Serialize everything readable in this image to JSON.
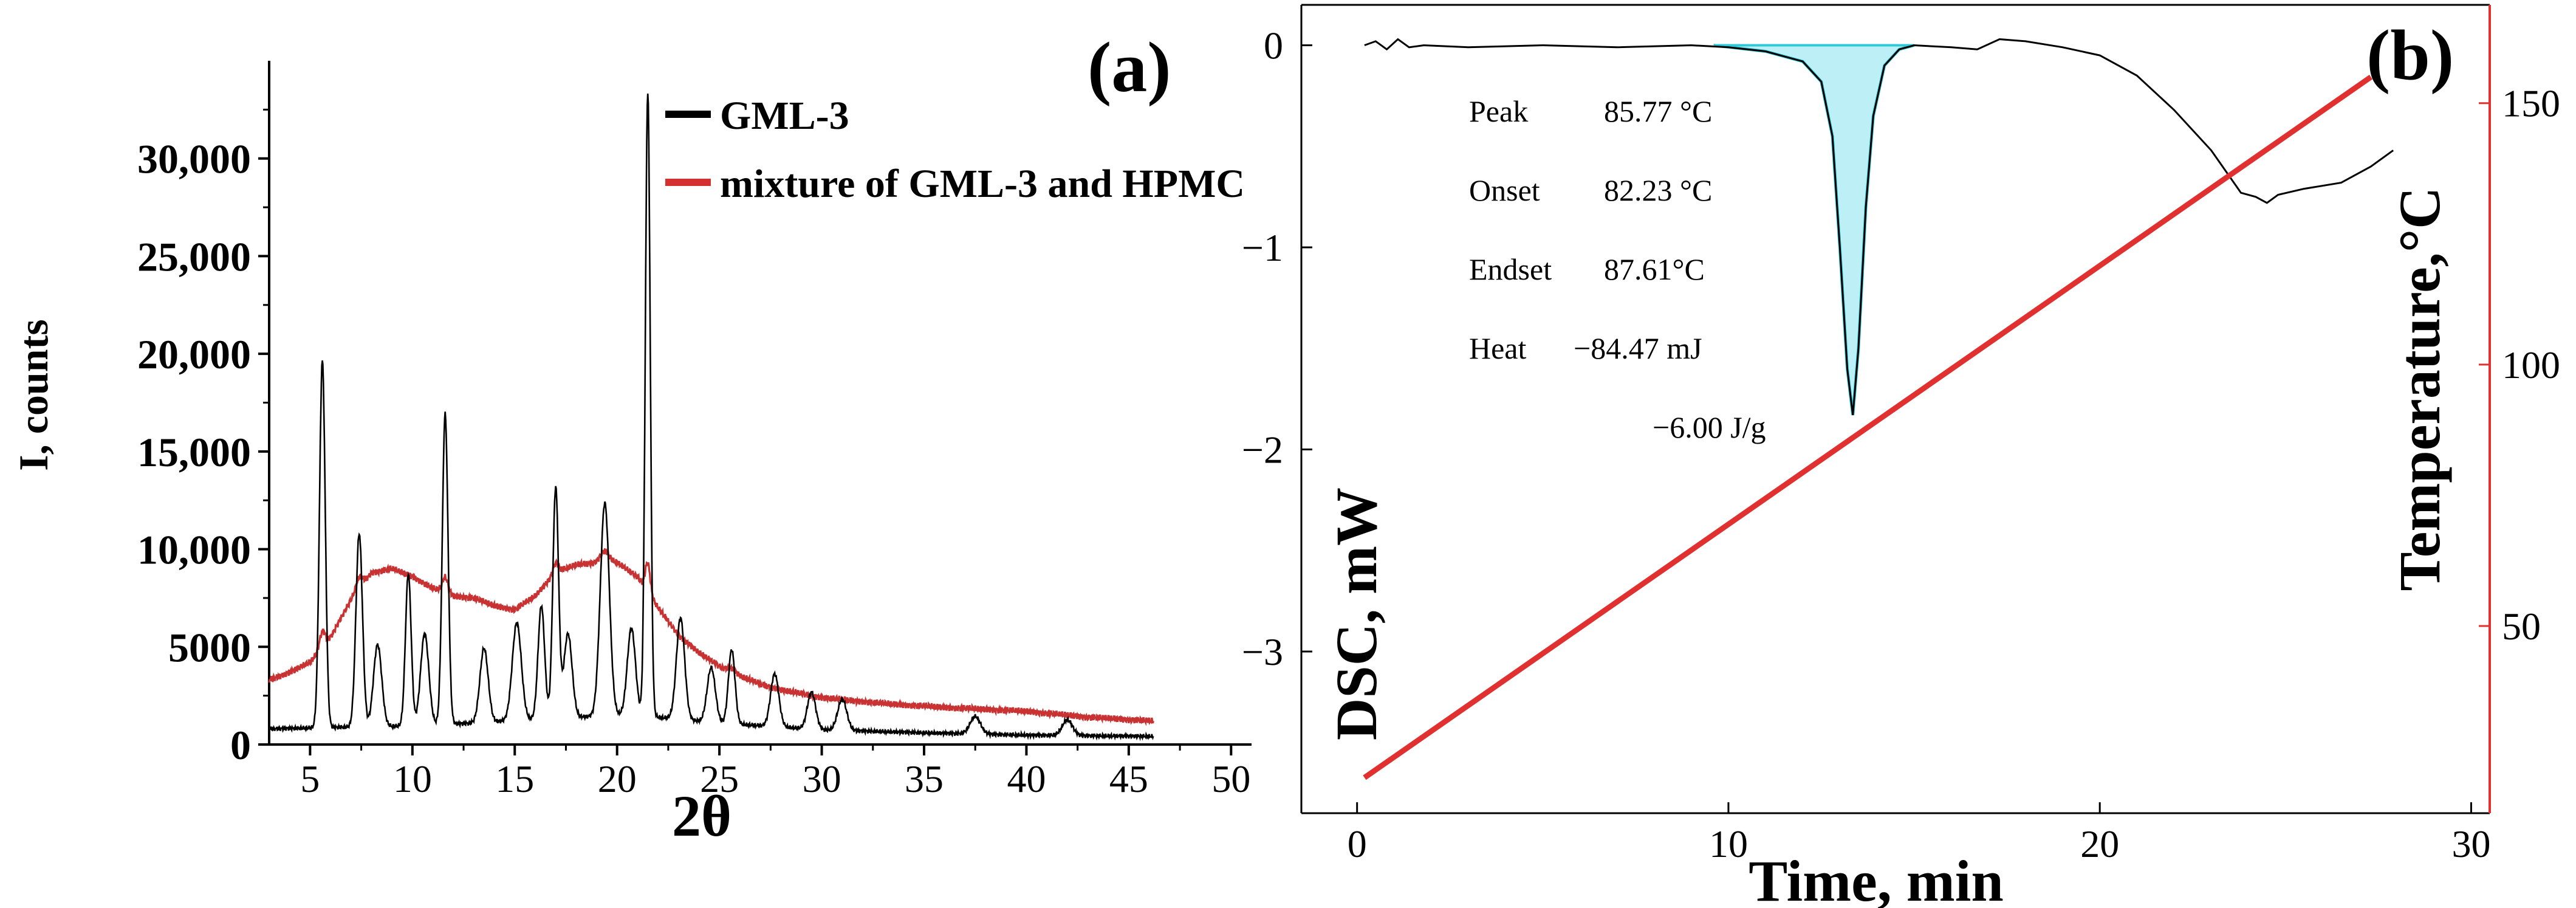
{
  "chart_data": [
    {
      "type": "line",
      "panel_label": "(a)",
      "xlabel": "2θ",
      "ylabel": "I, counts",
      "xlim": [
        3,
        51
      ],
      "ylim": [
        0,
        35000
      ],
      "x_ticks": [
        "5",
        "10",
        "15",
        "20",
        "25",
        "30",
        "35",
        "40",
        "45",
        "50"
      ],
      "y_ticks": [
        "0",
        "5000",
        "10,000",
        "15,000",
        "20,000",
        "25,000",
        "30,000"
      ],
      "grid": false,
      "legend_position": "top-right",
      "series": [
        {
          "name": "GML-3",
          "color": "#000000",
          "baseline": [
            [
              3,
              800
            ],
            [
              5,
              850
            ],
            [
              7,
              900
            ],
            [
              10,
              950
            ],
            [
              13,
              1100
            ],
            [
              16,
              1300
            ],
            [
              20,
              1500
            ],
            [
              22,
              1400
            ],
            [
              25,
              1100
            ],
            [
              28,
              900
            ],
            [
              30,
              750
            ],
            [
              35,
              600
            ],
            [
              40,
              480
            ],
            [
              46.2,
              420
            ]
          ],
          "peaks": [
            [
              5.6,
              18800,
              0.14
            ],
            [
              7.4,
              9900,
              0.16
            ],
            [
              8.3,
              4200,
              0.2
            ],
            [
              9.8,
              7800,
              0.14
            ],
            [
              10.6,
              4700,
              0.2
            ],
            [
              11.6,
              15900,
              0.14
            ],
            [
              13.5,
              3800,
              0.2
            ],
            [
              15.1,
              5000,
              0.22
            ],
            [
              16.3,
              5800,
              0.16
            ],
            [
              17.0,
              11800,
              0.14
            ],
            [
              17.6,
              4300,
              0.2
            ],
            [
              19.4,
              10900,
              0.22
            ],
            [
              20.7,
              4500,
              0.2
            ],
            [
              21.5,
              32000,
              0.12
            ],
            [
              23.1,
              5200,
              0.2
            ],
            [
              24.6,
              2800,
              0.2
            ],
            [
              25.6,
              3800,
              0.16
            ],
            [
              27.7,
              2700,
              0.2
            ],
            [
              29.5,
              1900,
              0.2
            ],
            [
              31.0,
              1600,
              0.22
            ],
            [
              37.5,
              900,
              0.25
            ],
            [
              42.0,
              800,
              0.25
            ]
          ]
        },
        {
          "name": "mixture of GML-3 and HPMC",
          "color": "#c83232",
          "baseline": [
            [
              3,
              3300
            ],
            [
              4,
              3700
            ],
            [
              5,
              4200
            ],
            [
              6,
              5500
            ],
            [
              7,
              7400
            ],
            [
              8,
              8800
            ],
            [
              9,
              9000
            ],
            [
              10,
              8600
            ],
            [
              11,
              8000
            ],
            [
              12,
              7600
            ],
            [
              13,
              7500
            ],
            [
              14,
              7100
            ],
            [
              15,
              6900
            ],
            [
              16,
              7600
            ],
            [
              17,
              8800
            ],
            [
              18,
              9200
            ],
            [
              19,
              9300
            ],
            [
              20,
              9300
            ],
            [
              21,
              8600
            ],
            [
              22,
              7000
            ],
            [
              23,
              5600
            ],
            [
              24,
              4700
            ],
            [
              25,
              4000
            ],
            [
              26,
              3500
            ],
            [
              27,
              3100
            ],
            [
              28,
              2800
            ],
            [
              30,
              2400
            ],
            [
              33,
              2100
            ],
            [
              36,
              1900
            ],
            [
              40,
              1700
            ],
            [
              43,
              1400
            ],
            [
              46.2,
              1200
            ]
          ],
          "peaks": [
            [
              5.6,
              800,
              0.14
            ],
            [
              7.4,
              600,
              0.16
            ],
            [
              11.6,
              800,
              0.14
            ],
            [
              17.0,
              500,
              0.14
            ],
            [
              19.4,
              600,
              0.22
            ],
            [
              21.5,
              1500,
              0.12
            ],
            [
              25.6,
              200,
              0.2
            ]
          ]
        }
      ]
    },
    {
      "type": "line",
      "panel_label": "(b)",
      "xlabel": "Time, min",
      "ylabel": "DSC, mW",
      "y2label": "Temperature,°C",
      "xlim": [
        -1.5,
        30.5
      ],
      "ylim": [
        -3.8,
        0.2
      ],
      "y2lim": [
        14.2,
        168.8
      ],
      "x_ticks": [
        "0",
        "10",
        "20",
        "30"
      ],
      "y_ticks": [
        "0",
        "−1",
        "−2",
        "−3"
      ],
      "y2_ticks": [
        "50",
        "100",
        "150"
      ],
      "grid": false,
      "series": [
        {
          "name": "DSC",
          "color": "#000000",
          "points": [
            [
              0.2,
              0
            ],
            [
              0.5,
              0.02
            ],
            [
              0.8,
              -0.02
            ],
            [
              1.1,
              0.03
            ],
            [
              1.4,
              -0.01
            ],
            [
              1.8,
              0
            ],
            [
              3,
              -0.01
            ],
            [
              5,
              0
            ],
            [
              7,
              -0.01
            ],
            [
              9,
              0
            ],
            [
              10,
              -0.01
            ],
            [
              11,
              -0.03
            ],
            [
              12,
              -0.08
            ],
            [
              12.5,
              -0.18
            ],
            [
              12.8,
              -0.45
            ],
            [
              13.0,
              -1.0
            ],
            [
              13.2,
              -1.6
            ],
            [
              13.35,
              -1.83
            ],
            [
              13.5,
              -1.5
            ],
            [
              13.7,
              -0.8
            ],
            [
              13.9,
              -0.35
            ],
            [
              14.2,
              -0.1
            ],
            [
              14.6,
              -0.02
            ],
            [
              15,
              0
            ],
            [
              16,
              -0.01
            ],
            [
              16.7,
              -0.02
            ],
            [
              17.3,
              0.03
            ],
            [
              18,
              0.02
            ],
            [
              19,
              -0.01
            ],
            [
              20,
              -0.05
            ],
            [
              21,
              -0.15
            ],
            [
              22,
              -0.32
            ],
            [
              23,
              -0.52
            ],
            [
              23.8,
              -0.73
            ],
            [
              24.2,
              -0.75
            ],
            [
              24.5,
              -0.78
            ],
            [
              24.8,
              -0.74
            ],
            [
              25.5,
              -0.71
            ],
            [
              26.5,
              -0.68
            ],
            [
              27.3,
              -0.6
            ],
            [
              27.9,
              -0.52
            ]
          ]
        },
        {
          "name": "Integration",
          "color": "#2ec8d8",
          "points": [
            [
              9.6,
              0
            ],
            [
              11,
              -0.03
            ],
            [
              12,
              -0.08
            ],
            [
              12.5,
              -0.18
            ],
            [
              12.8,
              -0.45
            ],
            [
              13.0,
              -1.0
            ],
            [
              13.2,
              -1.6
            ],
            [
              13.35,
              -1.83
            ],
            [
              13.5,
              -1.5
            ],
            [
              13.7,
              -0.8
            ],
            [
              13.9,
              -0.35
            ],
            [
              14.2,
              -0.1
            ],
            [
              14.6,
              -0.02
            ],
            [
              15,
              0
            ]
          ]
        },
        {
          "name": "Temperature",
          "color": "#e03030",
          "axis": "right",
          "points": [
            [
              0.2,
              21
            ],
            [
              27.3,
              155
            ]
          ]
        }
      ],
      "annotations": [
        {
          "label": "Peak",
          "value": "85.77 °C"
        },
        {
          "label": "Onset",
          "value": "82.23 °C"
        },
        {
          "label": "Endset",
          "value": "87.61°C"
        },
        {
          "label": "Heat",
          "value": "−84.47 mJ"
        },
        {
          "label": "",
          "value": "−6.00 J/g"
        }
      ]
    }
  ]
}
